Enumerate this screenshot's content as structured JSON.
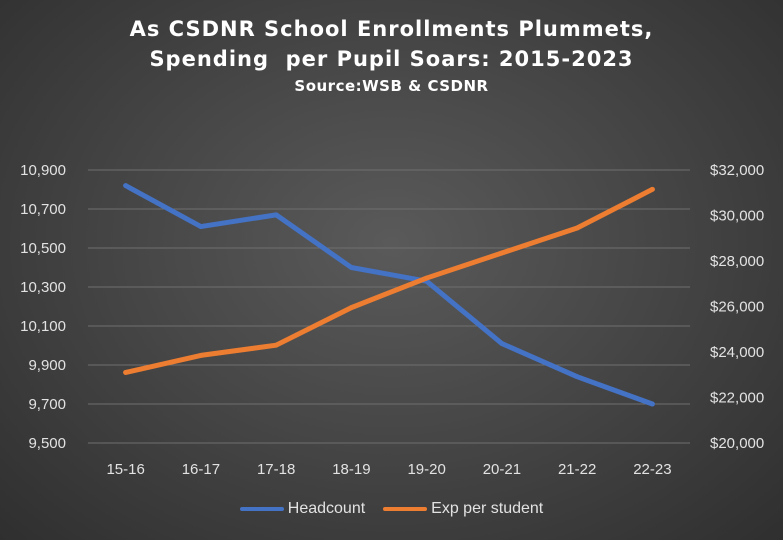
{
  "chart_data": {
    "type": "line",
    "title_lines": [
      "As CSDNR School Enrollments Plummets,",
      "Spending  per Pupil Soars: 2015-2023"
    ],
    "subtitle": "Source:WSB & CSDNR",
    "categories": [
      "15-16",
      "16-17",
      "17-18",
      "18-19",
      "19-20",
      "20-21",
      "21-22",
      "22-23"
    ],
    "left_axis": {
      "ylim": [
        9500,
        10900
      ],
      "ticks": [
        "10,900",
        "10,700",
        "10,500",
        "10,300",
        "10,100",
        "9,900",
        "9,700",
        "9,500"
      ],
      "tick_values": [
        10900,
        10700,
        10500,
        10300,
        10100,
        9900,
        9700,
        9500
      ]
    },
    "right_axis": {
      "ylim": [
        20000,
        32000
      ],
      "ticks": [
        "$32,000",
        "$30,000",
        "$28,000",
        "$26,000",
        "$24,000",
        "$22,000",
        "$20,000"
      ],
      "tick_values": [
        32000,
        30000,
        28000,
        26000,
        24000,
        22000,
        20000
      ]
    },
    "series": [
      {
        "name": "Headcount",
        "axis": "left",
        "color": "#4472c4",
        "values": [
          10820,
          10610,
          10670,
          10400,
          10330,
          10010,
          9840,
          9700
        ]
      },
      {
        "name": "Exp per student",
        "axis": "right",
        "color": "#ed7d31",
        "values": [
          23100,
          23850,
          24300,
          25950,
          27250,
          28350,
          29450,
          31150
        ]
      }
    ],
    "grid": true,
    "legend_position": "bottom"
  }
}
